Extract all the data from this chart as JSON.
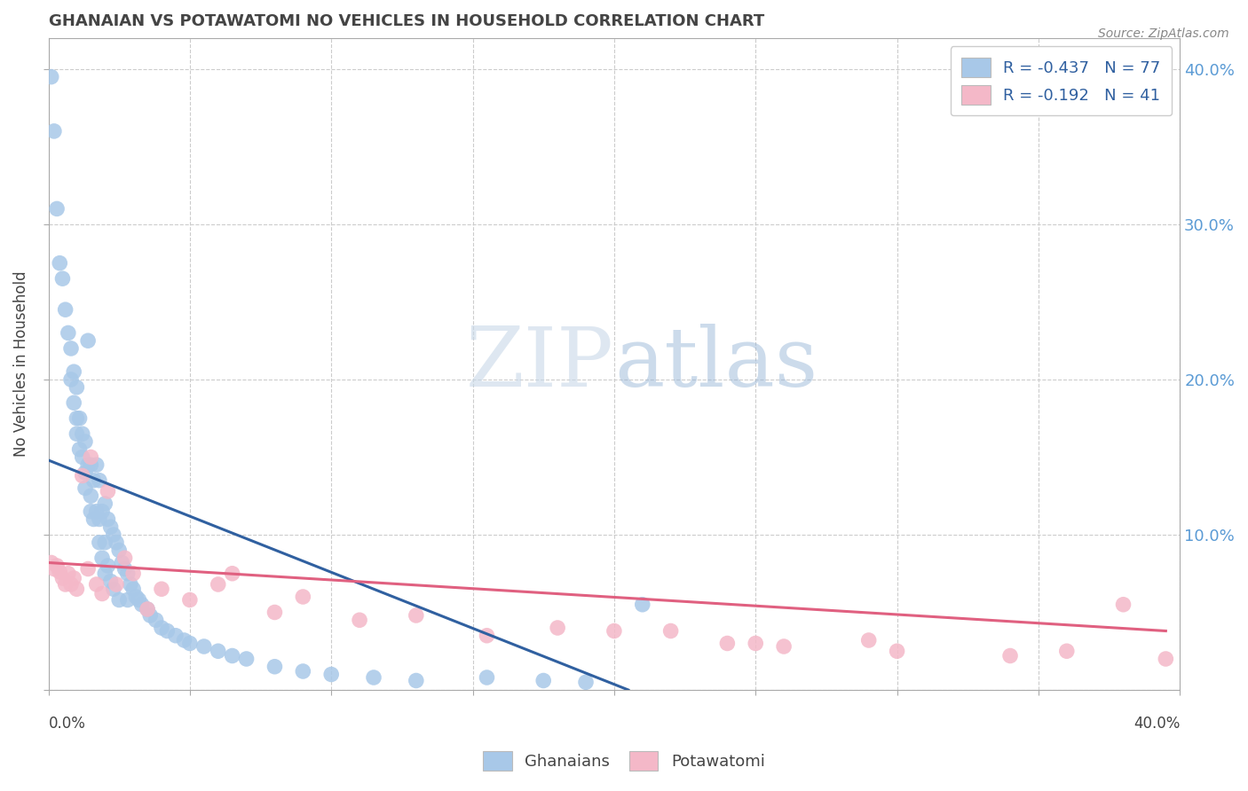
{
  "title": "GHANAIAN VS POTAWATOMI NO VEHICLES IN HOUSEHOLD CORRELATION CHART",
  "source": "Source: ZipAtlas.com",
  "ylabel": "No Vehicles in Household",
  "legend1_label": "R = -0.437   N = 77",
  "legend2_label": "R = -0.192   N = 41",
  "legend_bottom": "Ghanaians",
  "legend_bottom2": "Potawatomi",
  "blue_color": "#a8c8e8",
  "pink_color": "#f4b8c8",
  "blue_line_color": "#3060a0",
  "pink_line_color": "#e06080",
  "xlim": [
    0.0,
    0.4
  ],
  "ylim": [
    0.0,
    0.42
  ],
  "ghanaian_x": [
    0.001,
    0.002,
    0.003,
    0.004,
    0.005,
    0.006,
    0.007,
    0.008,
    0.008,
    0.009,
    0.009,
    0.01,
    0.01,
    0.01,
    0.011,
    0.011,
    0.012,
    0.012,
    0.013,
    0.013,
    0.013,
    0.014,
    0.014,
    0.015,
    0.015,
    0.015,
    0.016,
    0.016,
    0.017,
    0.017,
    0.018,
    0.018,
    0.018,
    0.019,
    0.019,
    0.02,
    0.02,
    0.02,
    0.021,
    0.021,
    0.022,
    0.022,
    0.023,
    0.023,
    0.024,
    0.025,
    0.025,
    0.026,
    0.027,
    0.028,
    0.028,
    0.029,
    0.03,
    0.031,
    0.032,
    0.033,
    0.035,
    0.036,
    0.038,
    0.04,
    0.042,
    0.045,
    0.048,
    0.05,
    0.055,
    0.06,
    0.065,
    0.07,
    0.08,
    0.09,
    0.1,
    0.115,
    0.13,
    0.155,
    0.175,
    0.19,
    0.21
  ],
  "ghanaian_y": [
    0.395,
    0.36,
    0.31,
    0.275,
    0.265,
    0.245,
    0.23,
    0.22,
    0.2,
    0.205,
    0.185,
    0.195,
    0.175,
    0.165,
    0.175,
    0.155,
    0.165,
    0.15,
    0.16,
    0.14,
    0.13,
    0.225,
    0.145,
    0.145,
    0.125,
    0.115,
    0.135,
    0.11,
    0.145,
    0.115,
    0.135,
    0.11,
    0.095,
    0.115,
    0.085,
    0.12,
    0.095,
    0.075,
    0.11,
    0.08,
    0.105,
    0.07,
    0.1,
    0.065,
    0.095,
    0.09,
    0.058,
    0.082,
    0.078,
    0.075,
    0.058,
    0.068,
    0.065,
    0.06,
    0.058,
    0.055,
    0.052,
    0.048,
    0.045,
    0.04,
    0.038,
    0.035,
    0.032,
    0.03,
    0.028,
    0.025,
    0.022,
    0.02,
    0.015,
    0.012,
    0.01,
    0.008,
    0.006,
    0.008,
    0.006,
    0.005,
    0.055
  ],
  "potawatomi_x": [
    0.001,
    0.002,
    0.003,
    0.004,
    0.005,
    0.006,
    0.007,
    0.008,
    0.009,
    0.01,
    0.012,
    0.014,
    0.015,
    0.017,
    0.019,
    0.021,
    0.024,
    0.027,
    0.03,
    0.035,
    0.04,
    0.05,
    0.06,
    0.065,
    0.08,
    0.09,
    0.11,
    0.13,
    0.155,
    0.18,
    0.2,
    0.22,
    0.24,
    0.26,
    0.3,
    0.34,
    0.38,
    0.25,
    0.29,
    0.36,
    0.395
  ],
  "potawatomi_y": [
    0.082,
    0.078,
    0.08,
    0.076,
    0.072,
    0.068,
    0.075,
    0.068,
    0.072,
    0.065,
    0.138,
    0.078,
    0.15,
    0.068,
    0.062,
    0.128,
    0.068,
    0.085,
    0.075,
    0.052,
    0.065,
    0.058,
    0.068,
    0.075,
    0.05,
    0.06,
    0.045,
    0.048,
    0.035,
    0.04,
    0.038,
    0.038,
    0.03,
    0.028,
    0.025,
    0.022,
    0.055,
    0.03,
    0.032,
    0.025,
    0.02
  ],
  "blue_line_x": [
    0.0,
    0.205
  ],
  "blue_line_y": [
    0.148,
    0.0
  ],
  "pink_line_x": [
    0.0,
    0.395
  ],
  "pink_line_y": [
    0.082,
    0.038
  ]
}
